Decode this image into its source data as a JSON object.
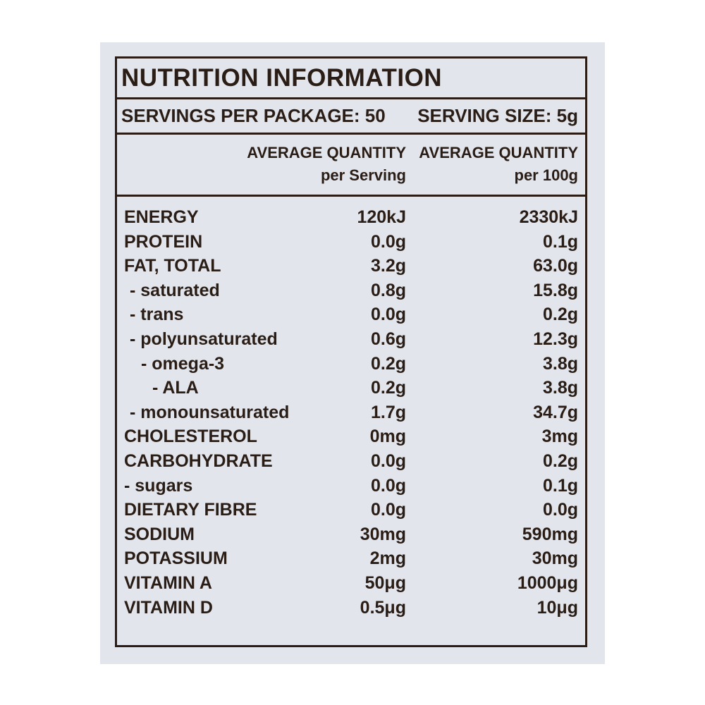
{
  "title": "NUTRITION INFORMATION",
  "servings_per_package": "SERVINGS PER PACKAGE: 50",
  "serving_size": "SERVING SIZE: 5g",
  "columns": {
    "per_serving_line1": "AVERAGE QUANTITY",
    "per_serving_line2": "per Serving",
    "per_100g_line1": "AVERAGE QUANTITY",
    "per_100g_line2": "per 100g"
  },
  "rows": [
    {
      "name": "ENERGY",
      "per_serving": "120kJ",
      "per_100g": "2330kJ"
    },
    {
      "name": "PROTEIN",
      "per_serving": "0.0g",
      "per_100g": "0.1g"
    },
    {
      "name": "FAT, TOTAL",
      "per_serving": "3.2g",
      "per_100g": "63.0g"
    },
    {
      "name": "- saturated",
      "per_serving": "0.8g",
      "per_100g": "15.8g"
    },
    {
      "name": "- trans",
      "per_serving": "0.0g",
      "per_100g": "0.2g"
    },
    {
      "name": "- polyunsaturated",
      "per_serving": "0.6g",
      "per_100g": "12.3g"
    },
    {
      "name": "- omega-3",
      "per_serving": "0.2g",
      "per_100g": "3.8g"
    },
    {
      "name": "- ALA",
      "per_serving": "0.2g",
      "per_100g": "3.8g"
    },
    {
      "name": "- monounsaturated",
      "per_serving": "1.7g",
      "per_100g": "34.7g"
    },
    {
      "name": "CHOLESTEROL",
      "per_serving": "0mg",
      "per_100g": "3mg"
    },
    {
      "name": "CARBOHYDRATE",
      "per_serving": "0.0g",
      "per_100g": "0.2g"
    },
    {
      "name": "- sugars",
      "per_serving": "0.0g",
      "per_100g": "0.1g"
    },
    {
      "name": "DIETARY FIBRE",
      "per_serving": "0.0g",
      "per_100g": "0.0g"
    },
    {
      "name": "SODIUM",
      "per_serving": "30mg",
      "per_100g": "590mg"
    },
    {
      "name": "POTASSIUM",
      "per_serving": "2mg",
      "per_100g": "30mg"
    },
    {
      "name": "VITAMIN A",
      "per_serving": "50μg",
      "per_100g": "1000μg"
    },
    {
      "name": "VITAMIN D",
      "per_serving": "0.5μg",
      "per_100g": "10μg"
    }
  ]
}
